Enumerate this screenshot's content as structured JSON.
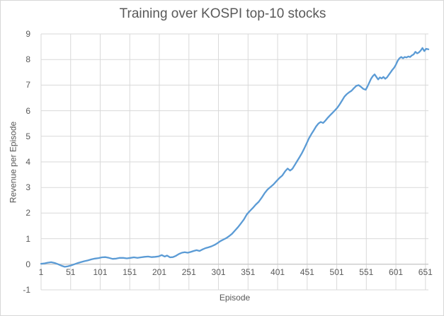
{
  "chart_data": {
    "type": "line",
    "title": "Training over KOSPI top-10 stocks",
    "xlabel": "Episode",
    "ylabel": "Revenue per Episode",
    "xlim": [
      1,
      656
    ],
    "ylim": [
      -1,
      9
    ],
    "x_ticks": [
      1,
      51,
      101,
      151,
      201,
      251,
      301,
      351,
      401,
      451,
      501,
      551,
      601,
      651
    ],
    "y_ticks": [
      9,
      8,
      7,
      6,
      5,
      4,
      3,
      2,
      1,
      0,
      -1
    ],
    "grid": true,
    "legend": false,
    "colors": {
      "line": "#5B9BD5",
      "gridline": "#D9D9D9",
      "axis_line": "#BFBFBF",
      "text": "#595959",
      "border": "#D7D7D7"
    },
    "series": [
      {
        "name": "revenue",
        "color": "#5B9BD5",
        "points": [
          [
            1,
            0.02
          ],
          [
            6,
            0.03
          ],
          [
            12,
            0.06
          ],
          [
            18,
            0.08
          ],
          [
            24,
            0.05
          ],
          [
            30,
            0.0
          ],
          [
            36,
            -0.06
          ],
          [
            41,
            -0.1
          ],
          [
            46,
            -0.08
          ],
          [
            51,
            -0.05
          ],
          [
            56,
            -0.01
          ],
          [
            62,
            0.04
          ],
          [
            68,
            0.08
          ],
          [
            74,
            0.12
          ],
          [
            80,
            0.15
          ],
          [
            86,
            0.19
          ],
          [
            92,
            0.22
          ],
          [
            98,
            0.24
          ],
          [
            104,
            0.27
          ],
          [
            110,
            0.28
          ],
          [
            116,
            0.25
          ],
          [
            122,
            0.21
          ],
          [
            128,
            0.22
          ],
          [
            134,
            0.25
          ],
          [
            140,
            0.25
          ],
          [
            146,
            0.23
          ],
          [
            152,
            0.25
          ],
          [
            158,
            0.27
          ],
          [
            164,
            0.25
          ],
          [
            170,
            0.27
          ],
          [
            176,
            0.29
          ],
          [
            182,
            0.3
          ],
          [
            188,
            0.28
          ],
          [
            194,
            0.29
          ],
          [
            200,
            0.31
          ],
          [
            205,
            0.36
          ],
          [
            210,
            0.3
          ],
          [
            214,
            0.34
          ],
          [
            219,
            0.27
          ],
          [
            224,
            0.28
          ],
          [
            229,
            0.33
          ],
          [
            234,
            0.4
          ],
          [
            239,
            0.45
          ],
          [
            244,
            0.47
          ],
          [
            249,
            0.45
          ],
          [
            254,
            0.48
          ],
          [
            259,
            0.52
          ],
          [
            264,
            0.55
          ],
          [
            269,
            0.52
          ],
          [
            274,
            0.58
          ],
          [
            279,
            0.63
          ],
          [
            284,
            0.66
          ],
          [
            289,
            0.7
          ],
          [
            294,
            0.75
          ],
          [
            299,
            0.82
          ],
          [
            304,
            0.9
          ],
          [
            309,
            0.96
          ],
          [
            314,
            1.02
          ],
          [
            319,
            1.1
          ],
          [
            324,
            1.19
          ],
          [
            329,
            1.32
          ],
          [
            334,
            1.45
          ],
          [
            339,
            1.6
          ],
          [
            344,
            1.75
          ],
          [
            349,
            1.95
          ],
          [
            354,
            2.08
          ],
          [
            359,
            2.2
          ],
          [
            364,
            2.33
          ],
          [
            369,
            2.44
          ],
          [
            374,
            2.6
          ],
          [
            379,
            2.78
          ],
          [
            384,
            2.92
          ],
          [
            389,
            3.02
          ],
          [
            394,
            3.12
          ],
          [
            399,
            3.25
          ],
          [
            404,
            3.37
          ],
          [
            409,
            3.47
          ],
          [
            414,
            3.64
          ],
          [
            418,
            3.74
          ],
          [
            422,
            3.66
          ],
          [
            426,
            3.73
          ],
          [
            430,
            3.88
          ],
          [
            434,
            4.03
          ],
          [
            438,
            4.18
          ],
          [
            442,
            4.34
          ],
          [
            446,
            4.52
          ],
          [
            450,
            4.72
          ],
          [
            454,
            4.92
          ],
          [
            458,
            5.08
          ],
          [
            462,
            5.23
          ],
          [
            466,
            5.38
          ],
          [
            470,
            5.5
          ],
          [
            474,
            5.56
          ],
          [
            478,
            5.52
          ],
          [
            482,
            5.62
          ],
          [
            486,
            5.73
          ],
          [
            490,
            5.83
          ],
          [
            494,
            5.92
          ],
          [
            498,
            6.02
          ],
          [
            502,
            6.12
          ],
          [
            506,
            6.25
          ],
          [
            510,
            6.4
          ],
          [
            514,
            6.55
          ],
          [
            518,
            6.65
          ],
          [
            522,
            6.72
          ],
          [
            526,
            6.78
          ],
          [
            530,
            6.88
          ],
          [
            534,
            6.97
          ],
          [
            538,
            7.0
          ],
          [
            542,
            6.93
          ],
          [
            546,
            6.85
          ],
          [
            550,
            6.82
          ],
          [
            553,
            6.95
          ],
          [
            556,
            7.1
          ],
          [
            559,
            7.25
          ],
          [
            562,
            7.35
          ],
          [
            565,
            7.42
          ],
          [
            568,
            7.32
          ],
          [
            571,
            7.22
          ],
          [
            574,
            7.3
          ],
          [
            577,
            7.26
          ],
          [
            580,
            7.32
          ],
          [
            583,
            7.25
          ],
          [
            586,
            7.3
          ],
          [
            589,
            7.4
          ],
          [
            592,
            7.5
          ],
          [
            595,
            7.6
          ],
          [
            598,
            7.68
          ],
          [
            601,
            7.8
          ],
          [
            604,
            7.95
          ],
          [
            607,
            8.05
          ],
          [
            610,
            8.1
          ],
          [
            613,
            8.05
          ],
          [
            616,
            8.1
          ],
          [
            619,
            8.08
          ],
          [
            622,
            8.12
          ],
          [
            625,
            8.1
          ],
          [
            628,
            8.16
          ],
          [
            631,
            8.2
          ],
          [
            634,
            8.3
          ],
          [
            637,
            8.24
          ],
          [
            640,
            8.28
          ],
          [
            643,
            8.35
          ],
          [
            646,
            8.45
          ],
          [
            649,
            8.33
          ],
          [
            652,
            8.42
          ],
          [
            656,
            8.4
          ]
        ]
      }
    ]
  }
}
